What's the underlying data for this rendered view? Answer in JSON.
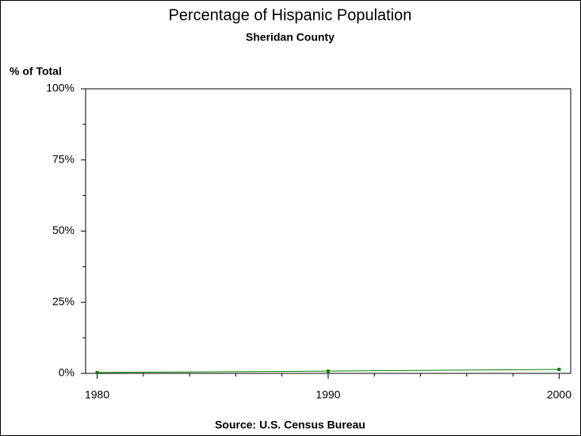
{
  "chart_data": {
    "type": "line",
    "title": "Percentage of Hispanic Population",
    "subtitle": "Sheridan County",
    "y_label": "% of Total",
    "source": "Source: U.S. Census Bureau",
    "x": [
      1980,
      1990,
      2000
    ],
    "series": [
      {
        "name": "Sheridan County",
        "color": "#008000",
        "values": [
          0.3,
          0.8,
          1.4
        ]
      }
    ],
    "xlim": [
      1979.5,
      2000.5
    ],
    "xticks": [
      1980,
      1990,
      2000
    ],
    "ylim": [
      0,
      100
    ],
    "yticks": [
      {
        "value": 0,
        "label": "0%"
      },
      {
        "value": 25,
        "label": "25%"
      },
      {
        "value": 50,
        "label": "50%"
      },
      {
        "value": 75,
        "label": "75%"
      },
      {
        "value": 100,
        "label": "100%"
      }
    ]
  }
}
